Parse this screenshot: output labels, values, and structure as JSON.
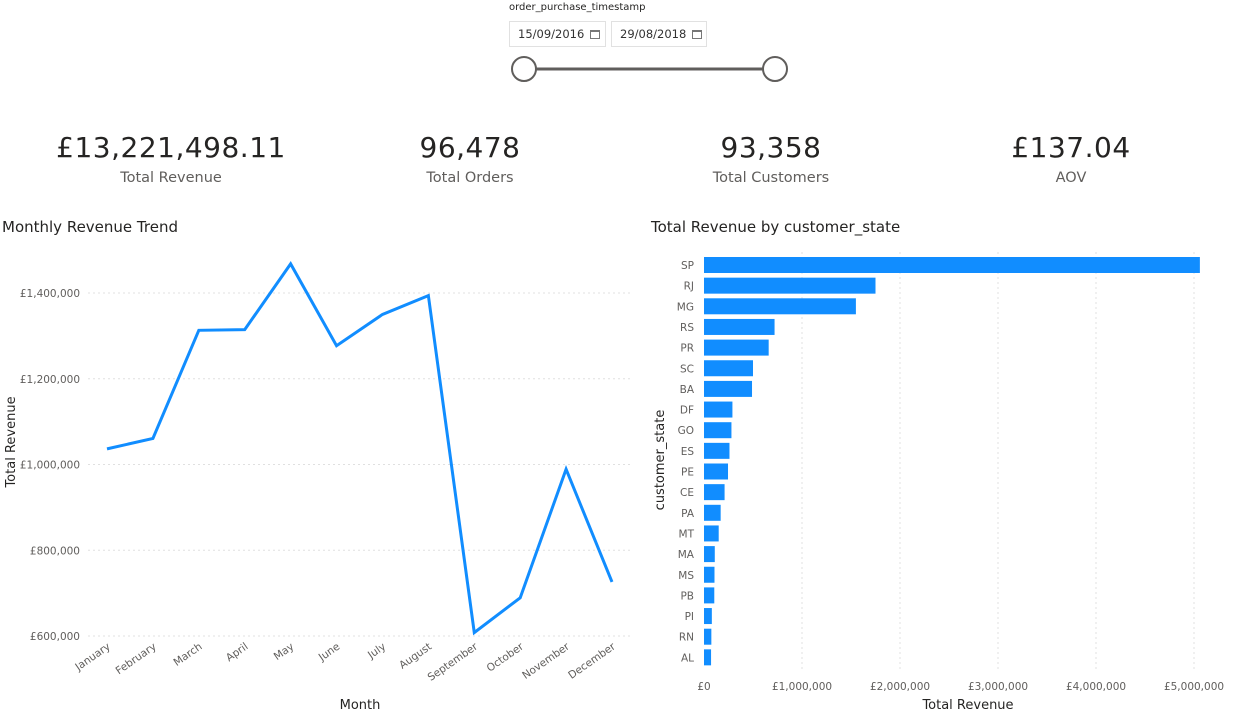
{
  "slicer": {
    "title": "order_purchase_timestamp",
    "start": "15/09/2016",
    "end": "29/08/2018",
    "icon": "calendar-icon",
    "range_fraction": [
      0,
      1
    ]
  },
  "kpis": [
    {
      "value": "£13,221,498.11",
      "label": "Total Revenue"
    },
    {
      "value": "96,478",
      "label": "Total Orders"
    },
    {
      "value": "93,358",
      "label": "Total Customers"
    },
    {
      "value": "£137.04",
      "label": "AOV"
    }
  ],
  "colors": {
    "accent": "#118DFF",
    "grid": "#e0e0e0",
    "text": "#605e5c"
  },
  "chart_data": [
    {
      "type": "line",
      "title": "Monthly Revenue Trend",
      "xlabel": "Month",
      "ylabel": "Total Revenue",
      "ylim": [
        600000,
        1480000
      ],
      "yticks": [
        600000,
        800000,
        1000000,
        1200000,
        1400000
      ],
      "ytick_labels": [
        "£600,000",
        "£800,000",
        "£1,000,000",
        "£1,200,000",
        "£1,400,000"
      ],
      "grid": true,
      "categories": [
        "January",
        "February",
        "March",
        "April",
        "May",
        "June",
        "July",
        "August",
        "September",
        "October",
        "November",
        "December"
      ],
      "values": [
        1036500,
        1060600,
        1313000,
        1314600,
        1468000,
        1277000,
        1350000,
        1394000,
        608000,
        689000,
        989000,
        726000
      ]
    },
    {
      "type": "bar",
      "orientation": "horizontal",
      "title": "Total Revenue by customer_state",
      "xlabel": "Total Revenue",
      "ylabel": "customer_state",
      "xlim": [
        0,
        5200000
      ],
      "xticks": [
        0,
        1000000,
        2000000,
        3000000,
        4000000,
        5000000
      ],
      "xtick_labels": [
        "£0",
        "£1,000,000",
        "£2,000,000",
        "£3,000,000",
        "£4,000,000",
        "£5,000,000"
      ],
      "grid": true,
      "categories": [
        "SP",
        "RJ",
        "MG",
        "RS",
        "PR",
        "SC",
        "BA",
        "DF",
        "GO",
        "ES",
        "PE",
        "CE",
        "PA",
        "MT",
        "MA",
        "MS",
        "PB",
        "PI",
        "RN",
        "AL"
      ],
      "values": [
        5060000,
        1750000,
        1550000,
        720000,
        660000,
        500000,
        490000,
        290000,
        280000,
        260000,
        245000,
        210000,
        170000,
        150000,
        110000,
        107000,
        105000,
        80000,
        75000,
        72000
      ]
    }
  ]
}
